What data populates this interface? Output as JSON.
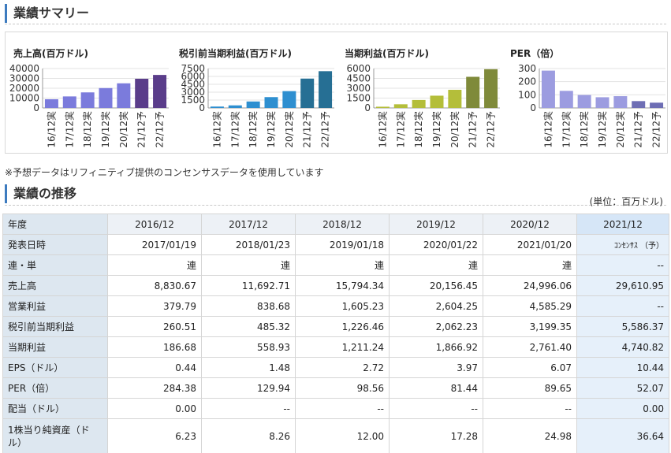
{
  "summary": {
    "title": "業績サマリー",
    "charts": [
      {
        "title": "売上高(百万ドル)",
        "color": "#7b7bdc",
        "forecast_color": "#5a3d8a",
        "ticks": [
          "40000",
          "30000",
          "20000",
          "10000",
          "0"
        ],
        "categories": [
          "16/12実",
          "17/12実",
          "18/12実",
          "19/12実",
          "20/12実",
          "21/12予",
          "22/12予"
        ]
      },
      {
        "title": "税引前当期利益(百万ドル)",
        "color": "#2e8fd0",
        "forecast_color": "#266f94",
        "ticks": [
          "7500",
          "6000",
          "4500",
          "3000",
          "1500",
          "0"
        ],
        "categories": [
          "16/12実",
          "17/12実",
          "18/12実",
          "19/12実",
          "20/12実",
          "21/12予",
          "22/12予"
        ]
      },
      {
        "title": "当期利益(百万ドル)",
        "color": "#b4be3a",
        "forecast_color": "#7f8a3a",
        "ticks": [
          "6000",
          "4500",
          "3000",
          "1500",
          "0"
        ],
        "categories": [
          "16/12実",
          "17/12実",
          "18/12実",
          "19/12実",
          "20/12実",
          "21/12予",
          "22/12予"
        ]
      },
      {
        "title": "PER（倍）",
        "color": "#9c9ce0",
        "forecast_color": "#6e6eb4",
        "ticks": [
          "300",
          "200",
          "100",
          "0"
        ],
        "categories": [
          "16/12実",
          "17/12実",
          "18/12実",
          "19/12実",
          "20/12実",
          "21/12予",
          "22/12予"
        ]
      }
    ]
  },
  "chart_data": [
    {
      "type": "bar",
      "title": "売上高(百万ドル)",
      "categories": [
        "16/12実",
        "17/12実",
        "18/12実",
        "19/12実",
        "20/12実",
        "21/12予",
        "22/12予"
      ],
      "values": [
        8830.67,
        11692.71,
        15794.34,
        20156.45,
        24996.06,
        29610.95,
        33500
      ],
      "ylim": [
        0,
        40000
      ]
    },
    {
      "type": "bar",
      "title": "税引前当期利益(百万ドル)",
      "categories": [
        "16/12実",
        "17/12実",
        "18/12実",
        "19/12実",
        "20/12実",
        "21/12予",
        "22/12予"
      ],
      "values": [
        260.51,
        485.32,
        1226.46,
        2062.23,
        3199.35,
        5586.37,
        7000
      ],
      "ylim": [
        0,
        7500
      ]
    },
    {
      "type": "bar",
      "title": "当期利益(百万ドル)",
      "categories": [
        "16/12実",
        "17/12実",
        "18/12実",
        "19/12実",
        "20/12実",
        "21/12予",
        "22/12予"
      ],
      "values": [
        186.68,
        558.93,
        1211.24,
        1866.92,
        2761.4,
        4740.82,
        5900
      ],
      "ylim": [
        0,
        6000
      ]
    },
    {
      "type": "bar",
      "title": "PER（倍）",
      "categories": [
        "16/12実",
        "17/12実",
        "18/12実",
        "19/12実",
        "20/12実",
        "21/12予",
        "22/12予"
      ],
      "values": [
        284.38,
        129.94,
        98.56,
        81.44,
        89.65,
        52.07,
        40
      ],
      "ylim": [
        0,
        300
      ]
    }
  ],
  "note": "※予想データはリフィニティブ提供のコンセンサスデータを使用しています",
  "trend": {
    "title": "業績の推移",
    "unit": "(単位：百万ドル)",
    "columns": [
      "年度",
      "2016/12",
      "2017/12",
      "2018/12",
      "2019/12",
      "2020/12",
      "2021/12"
    ],
    "rows": [
      {
        "label": "発表日時",
        "values": [
          "2017/01/19",
          "2018/01/23",
          "2019/01/18",
          "2020/01/22",
          "2021/01/20",
          "ｺﾝｾﾝｻｽ （予）"
        ]
      },
      {
        "label": "連・単",
        "values": [
          "連",
          "連",
          "連",
          "連",
          "連",
          "--"
        ]
      },
      {
        "label": "売上高",
        "values": [
          "8,830.67",
          "11,692.71",
          "15,794.34",
          "20,156.45",
          "24,996.06",
          "29,610.95"
        ]
      },
      {
        "label": "営業利益",
        "values": [
          "379.79",
          "838.68",
          "1,605.23",
          "2,604.25",
          "4,585.29",
          "--"
        ]
      },
      {
        "label": "税引前当期利益",
        "values": [
          "260.51",
          "485.32",
          "1,226.46",
          "2,062.23",
          "3,199.35",
          "5,586.37"
        ]
      },
      {
        "label": "当期利益",
        "values": [
          "186.68",
          "558.93",
          "1,211.24",
          "1,866.92",
          "2,761.40",
          "4,740.82"
        ]
      },
      {
        "label": "EPS（ドル）",
        "values": [
          "0.44",
          "1.48",
          "2.72",
          "3.97",
          "6.07",
          "10.44"
        ]
      },
      {
        "label": "PER（倍）",
        "values": [
          "284.38",
          "129.94",
          "98.56",
          "81.44",
          "89.65",
          "52.07"
        ]
      },
      {
        "label": "配当（ドル）",
        "values": [
          "0.00",
          "--",
          "--",
          "--",
          "--",
          "0.00"
        ]
      },
      {
        "label": "1株当り純資産（ドル）",
        "values": [
          "6.23",
          "8.26",
          "12.00",
          "17.28",
          "24.98",
          "36.64"
        ]
      }
    ]
  }
}
